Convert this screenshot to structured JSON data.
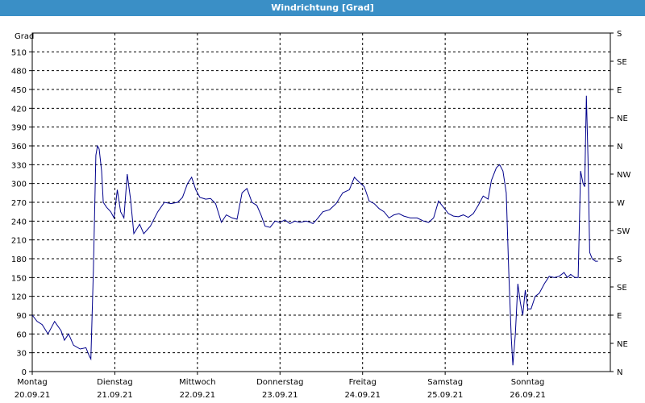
{
  "window": {
    "title": "Windrichtung [Grad]"
  },
  "chart_data": {
    "type": "line",
    "ylabel": "Grad",
    "ylim": [
      0,
      540
    ],
    "xlim": [
      0,
      7
    ],
    "grid": true,
    "y_ticks": [
      0,
      30,
      60,
      90,
      120,
      150,
      180,
      210,
      240,
      270,
      300,
      330,
      360,
      390,
      420,
      450,
      480,
      510
    ],
    "right_ticks": [
      {
        "v": 0,
        "label": "N"
      },
      {
        "v": 30,
        "label": "NE"
      },
      {
        "v": 60,
        "label": "E"
      },
      {
        "v": 90,
        "label": "SE"
      },
      {
        "v": 120,
        "label": "S"
      },
      {
        "v": 150,
        "label": "SW"
      },
      {
        "v": 180,
        "label": "W"
      },
      {
        "v": 210,
        "label": "NW"
      },
      {
        "v": 240,
        "label": "N"
      },
      {
        "v": 270,
        "label": "NE"
      },
      {
        "v": 300,
        "label": "E"
      },
      {
        "v": 330,
        "label": "SE"
      },
      {
        "v": 360,
        "label": "S"
      }
    ],
    "x_ticks": [
      {
        "day": "Montag",
        "date": "20.09.21"
      },
      {
        "day": "Dienstag",
        "date": "21.09.21"
      },
      {
        "day": "Mittwoch",
        "date": "22.09.21"
      },
      {
        "day": "Donnerstag",
        "date": "23.09.21"
      },
      {
        "day": "Freitag",
        "date": "24.09.21"
      },
      {
        "day": "Samstag",
        "date": "25.09.21"
      },
      {
        "day": "Sonntag",
        "date": "26.09.21"
      }
    ],
    "series": [
      {
        "color": "#00008b",
        "points": [
          [
            0.0,
            90
          ],
          [
            0.06,
            80
          ],
          [
            0.12,
            75
          ],
          [
            0.19,
            60
          ],
          [
            0.27,
            80
          ],
          [
            0.35,
            65
          ],
          [
            0.39,
            50
          ],
          [
            0.44,
            60
          ],
          [
            0.5,
            42
          ],
          [
            0.58,
            36
          ],
          [
            0.65,
            38
          ],
          [
            0.69,
            25
          ],
          [
            0.71,
            20
          ],
          [
            0.74,
            160
          ],
          [
            0.77,
            345
          ],
          [
            0.79,
            360
          ],
          [
            0.81,
            355
          ],
          [
            0.84,
            320
          ],
          [
            0.86,
            270
          ],
          [
            0.9,
            262
          ],
          [
            0.95,
            255
          ],
          [
            0.99,
            245
          ],
          [
            1.03,
            290
          ],
          [
            1.07,
            255
          ],
          [
            1.11,
            245
          ],
          [
            1.15,
            315
          ],
          [
            1.19,
            275
          ],
          [
            1.23,
            220
          ],
          [
            1.3,
            235
          ],
          [
            1.35,
            220
          ],
          [
            1.43,
            232
          ],
          [
            1.52,
            255
          ],
          [
            1.6,
            270
          ],
          [
            1.68,
            268
          ],
          [
            1.76,
            270
          ],
          [
            1.82,
            278
          ],
          [
            1.88,
            300
          ],
          [
            1.93,
            310
          ],
          [
            1.98,
            290
          ],
          [
            2.03,
            278
          ],
          [
            2.1,
            275
          ],
          [
            2.16,
            276
          ],
          [
            2.22,
            268
          ],
          [
            2.29,
            238
          ],
          [
            2.35,
            250
          ],
          [
            2.42,
            245
          ],
          [
            2.48,
            243
          ],
          [
            2.54,
            285
          ],
          [
            2.6,
            292
          ],
          [
            2.66,
            270
          ],
          [
            2.72,
            265
          ],
          [
            2.77,
            250
          ],
          [
            2.82,
            232
          ],
          [
            2.88,
            230
          ],
          [
            2.94,
            240
          ],
          [
            3.0,
            238
          ],
          [
            3.06,
            242
          ],
          [
            3.12,
            236
          ],
          [
            3.18,
            240
          ],
          [
            3.24,
            238
          ],
          [
            3.32,
            240
          ],
          [
            3.4,
            236
          ],
          [
            3.46,
            245
          ],
          [
            3.52,
            255
          ],
          [
            3.6,
            258
          ],
          [
            3.68,
            268
          ],
          [
            3.76,
            285
          ],
          [
            3.84,
            290
          ],
          [
            3.9,
            310
          ],
          [
            3.96,
            302
          ],
          [
            4.02,
            295
          ],
          [
            4.08,
            272
          ],
          [
            4.14,
            268
          ],
          [
            4.2,
            260
          ],
          [
            4.26,
            255
          ],
          [
            4.32,
            245
          ],
          [
            4.38,
            250
          ],
          [
            4.44,
            252
          ],
          [
            4.5,
            248
          ],
          [
            4.58,
            245
          ],
          [
            4.66,
            245
          ],
          [
            4.74,
            240
          ],
          [
            4.8,
            238
          ],
          [
            4.86,
            245
          ],
          [
            4.92,
            272
          ],
          [
            4.98,
            262
          ],
          [
            5.04,
            252
          ],
          [
            5.1,
            248
          ],
          [
            5.16,
            247
          ],
          [
            5.22,
            250
          ],
          [
            5.28,
            246
          ],
          [
            5.34,
            252
          ],
          [
            5.4,
            265
          ],
          [
            5.46,
            280
          ],
          [
            5.52,
            275
          ],
          [
            5.56,
            305
          ],
          [
            5.62,
            325
          ],
          [
            5.66,
            330
          ],
          [
            5.7,
            320
          ],
          [
            5.74,
            285
          ],
          [
            5.77,
            160
          ],
          [
            5.8,
            55
          ],
          [
            5.82,
            10
          ],
          [
            5.85,
            60
          ],
          [
            5.88,
            140
          ],
          [
            5.91,
            110
          ],
          [
            5.94,
            90
          ],
          [
            5.97,
            130
          ],
          [
            6.0,
            100
          ],
          [
            6.04,
            100
          ],
          [
            6.09,
            120
          ],
          [
            6.14,
            125
          ],
          [
            6.2,
            140
          ],
          [
            6.26,
            152
          ],
          [
            6.32,
            150
          ],
          [
            6.38,
            152
          ],
          [
            6.44,
            158
          ],
          [
            6.48,
            150
          ],
          [
            6.52,
            155
          ],
          [
            6.57,
            150
          ],
          [
            6.61,
            150
          ],
          [
            6.64,
            320
          ],
          [
            6.67,
            300
          ],
          [
            6.69,
            295
          ],
          [
            6.71,
            440
          ],
          [
            6.73,
            340
          ],
          [
            6.75,
            190
          ],
          [
            6.78,
            180
          ],
          [
            6.82,
            176
          ],
          [
            6.85,
            176
          ]
        ]
      }
    ]
  }
}
